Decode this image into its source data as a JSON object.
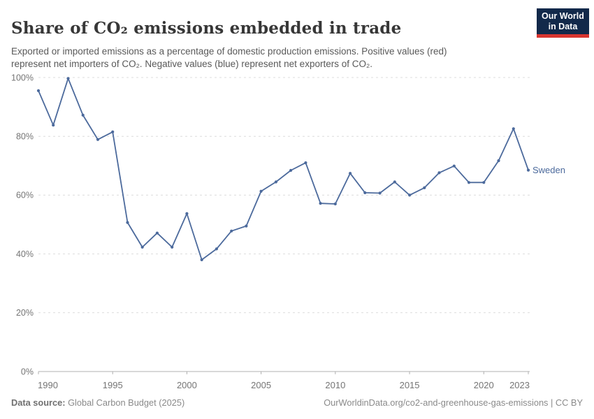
{
  "header": {
    "title": "Share of CO₂ emissions embedded in trade",
    "subtitle": "Exported or imported emissions as a percentage of domestic production emissions. Positive values (red) represent net importers of CO₂. Negative values (blue) represent net exporters of CO₂.",
    "logo": {
      "line1": "Our World",
      "line2": "in Data"
    }
  },
  "chart_data": {
    "type": "line",
    "title": "Share of CO₂ emissions embedded in trade",
    "entity": "Sweden",
    "unit": "%",
    "x": [
      1990,
      1991,
      1992,
      1993,
      1994,
      1995,
      1996,
      1997,
      1998,
      1999,
      2000,
      2001,
      2002,
      2003,
      2004,
      2005,
      2006,
      2007,
      2008,
      2009,
      2010,
      2011,
      2012,
      2013,
      2014,
      2015,
      2016,
      2017,
      2018,
      2019,
      2020,
      2021,
      2022,
      2023
    ],
    "values": [
      95.5,
      83.8,
      99.7,
      87.2,
      78.9,
      81.5,
      50.7,
      42.3,
      47.1,
      42.3,
      53.7,
      38.0,
      41.7,
      47.8,
      49.5,
      61.3,
      64.5,
      68.4,
      71.0,
      57.2,
      57.0,
      67.4,
      60.8,
      60.7,
      64.5,
      60.0,
      62.5,
      67.6,
      69.9,
      64.3,
      64.3,
      71.7,
      82.6,
      68.5
    ],
    "ylim": [
      0,
      100
    ],
    "yticks": [
      0,
      20,
      40,
      60,
      80,
      100
    ],
    "ytick_suffix": "%",
    "xticks": [
      1990,
      1995,
      2000,
      2005,
      2010,
      2015,
      2020,
      2023
    ],
    "grid": true,
    "legend_position": "end-of-line-label",
    "line_color": "#4c6a9c",
    "marker_color": "#4c6a9c",
    "entity_label_color": "#4c6a9c",
    "grid_color": "#dcdcdc",
    "axis_color": "#b0b0b0",
    "tick_label_color": "#757575"
  },
  "footer": {
    "source_label": "Data source:",
    "source_text": " Global Carbon Budget (2025)",
    "cite_text": "OurWorldinData.org/co2-and-greenhouse-gas-emissions | CC BY"
  }
}
